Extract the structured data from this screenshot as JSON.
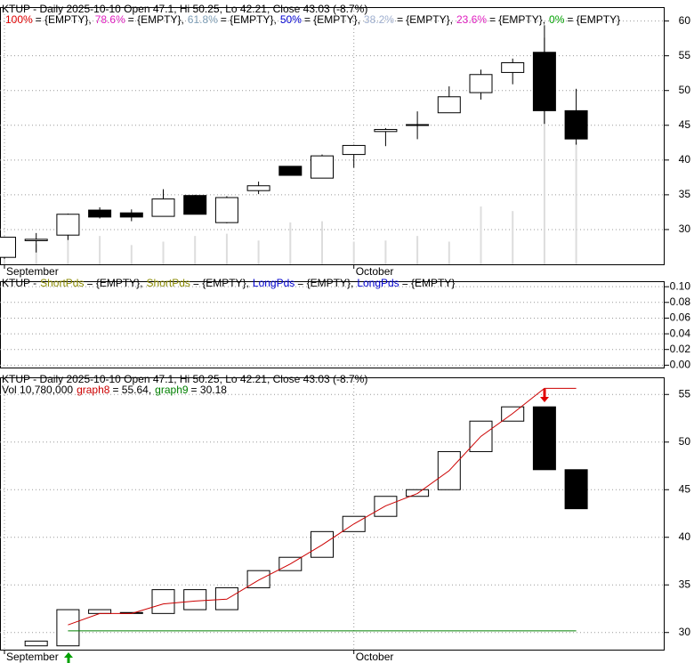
{
  "chart_data": [
    {
      "type": "candlestick",
      "title": "KTUP - Daily 2025-10-10 Open 47.1, Hi 50.25, Lo 42.21, Close 43.03 (-8.7%)",
      "legend": [
        {
          "name": "100%",
          "color": "#e00000",
          "text": "= {EMPTY},"
        },
        {
          "name": "78.6%",
          "color": "#e020c0",
          "text": "= {EMPTY},"
        },
        {
          "name": "61.8%",
          "color": "#7f9fb7",
          "text": "= {EMPTY},"
        },
        {
          "name": "50%",
          "color": "#0000d0",
          "text": "= {EMPTY},"
        },
        {
          "name": "38.2%",
          "color": "#a0b0d0",
          "text": "= {EMPTY},"
        },
        {
          "name": "23.6%",
          "color": "#e020c0",
          "text": "= {EMPTY},"
        },
        {
          "name": "0%",
          "color": "#00a000",
          "text": "= {EMPTY}"
        }
      ],
      "categories": [
        "September",
        null,
        null,
        null,
        null,
        null,
        null,
        null,
        null,
        null,
        null,
        "October",
        null,
        null,
        null,
        null,
        null,
        null,
        null
      ],
      "open": [
        26.0,
        28.4,
        29.2,
        32.8,
        32.4,
        31.9,
        34.9,
        31.0,
        35.6,
        39.1,
        37.4,
        40.8,
        44.1,
        45.0,
        46.8,
        49.7,
        52.6,
        55.5,
        47.1
      ],
      "high": [
        29.0,
        29.5,
        32.3,
        33.2,
        32.9,
        35.8,
        35.0,
        34.8,
        36.9,
        39.1,
        40.8,
        42.2,
        44.6,
        47.0,
        50.6,
        53.0,
        54.6,
        59.4,
        50.25
      ],
      "low": [
        25.8,
        26.7,
        28.5,
        31.6,
        31.2,
        31.9,
        32.2,
        30.9,
        35.1,
        37.8,
        37.4,
        38.9,
        42.0,
        43.0,
        46.8,
        48.7,
        50.9,
        45.2,
        42.21
      ],
      "close": [
        28.9,
        28.6,
        32.2,
        31.8,
        31.8,
        34.4,
        32.2,
        34.6,
        36.3,
        37.8,
        40.6,
        42.1,
        44.4,
        45.1,
        49.1,
        52.3,
        54.0,
        47.1,
        43.03
      ],
      "volume": {
        "color": "#dddddd",
        "axis": "y2",
        "values": [
          1500000,
          1800000,
          2600000,
          2500000,
          1700000,
          2000000,
          2500000,
          2700000,
          2100000,
          3700000,
          3800000,
          2000000,
          2100000,
          2500000,
          2000000,
          5100000,
          4700000,
          20000000,
          10780000
        ]
      },
      "ylim": [
        25,
        62
      ],
      "yticks": [
        30,
        35,
        40,
        45,
        50,
        55,
        60
      ],
      "y2lim": [
        0,
        22700000
      ],
      "grid": true
    },
    {
      "type": "indicator",
      "title": "KTUP -",
      "legend": [
        {
          "name": "ShortPds",
          "color": "#8a8a00",
          "text": "= {EMPTY},"
        },
        {
          "name": "ShortPds",
          "color": "#8a8a00",
          "text": "= {EMPTY},"
        },
        {
          "name": "LongPds",
          "color": "#0000d0",
          "text": "= {EMPTY},"
        },
        {
          "name": "LongPds",
          "color": "#0000d0",
          "text": "= {EMPTY}"
        }
      ],
      "ylim": [
        -0.003,
        0.107
      ],
      "yticks": [
        {
          "value": 0,
          "label": "0.00"
        },
        {
          "value": 0.02,
          "label": "0.02"
        },
        {
          "value": 0.04,
          "label": "0.04"
        },
        {
          "value": 0.06,
          "label": "0.06"
        },
        {
          "value": 0.08,
          "label": "0.08"
        },
        {
          "value": 0.1,
          "label": "0.10"
        }
      ],
      "grid": true
    },
    {
      "type": "box",
      "title": "KTUP - Daily 2025-10-10 Open 47.1, Hi 50.25, Lo 42.21, Close 43.03 (-8.7%)",
      "volume_label": "Vol 10,780,000",
      "categories": [
        "September",
        null,
        null,
        null,
        null,
        null,
        null,
        null,
        null,
        null,
        null,
        "October",
        null,
        null,
        null,
        null,
        null,
        null,
        null
      ],
      "open": [
        null,
        28.6,
        28.6,
        32.0,
        32.1,
        32.0,
        32.4,
        32.4,
        34.7,
        36.5,
        37.9,
        40.6,
        42.2,
        44.3,
        45.0,
        49.0,
        52.2,
        53.7,
        47.1
      ],
      "close": [
        null,
        29.1,
        32.4,
        32.4,
        32.0,
        34.5,
        34.5,
        34.7,
        36.5,
        37.9,
        40.6,
        42.2,
        44.3,
        45.0,
        49.0,
        52.2,
        53.7,
        47.1,
        43.0
      ],
      "series": [
        {
          "name": "graph8",
          "color": "#cc0000",
          "legend_text": "= 55.64,",
          "values": [
            null,
            null,
            30.8,
            32.0,
            32.0,
            33.0,
            33.3,
            33.5,
            35.5,
            37.2,
            39.2,
            41.4,
            43.3,
            44.6,
            47.0,
            50.6,
            53.0,
            55.64,
            55.64
          ]
        },
        {
          "name": "graph9",
          "color": "#008000",
          "legend_text": "= 30.18",
          "values": [
            null,
            null,
            30.18,
            30.18,
            30.18,
            30.18,
            30.18,
            30.18,
            30.18,
            30.18,
            30.18,
            30.18,
            30.18,
            30.18,
            30.18,
            30.18,
            30.18,
            30.18,
            30.18
          ]
        }
      ],
      "ylim": [
        28.2,
        56.8
      ],
      "yticks": [
        30,
        35,
        40,
        45,
        50,
        55
      ],
      "grid": true
    }
  ]
}
